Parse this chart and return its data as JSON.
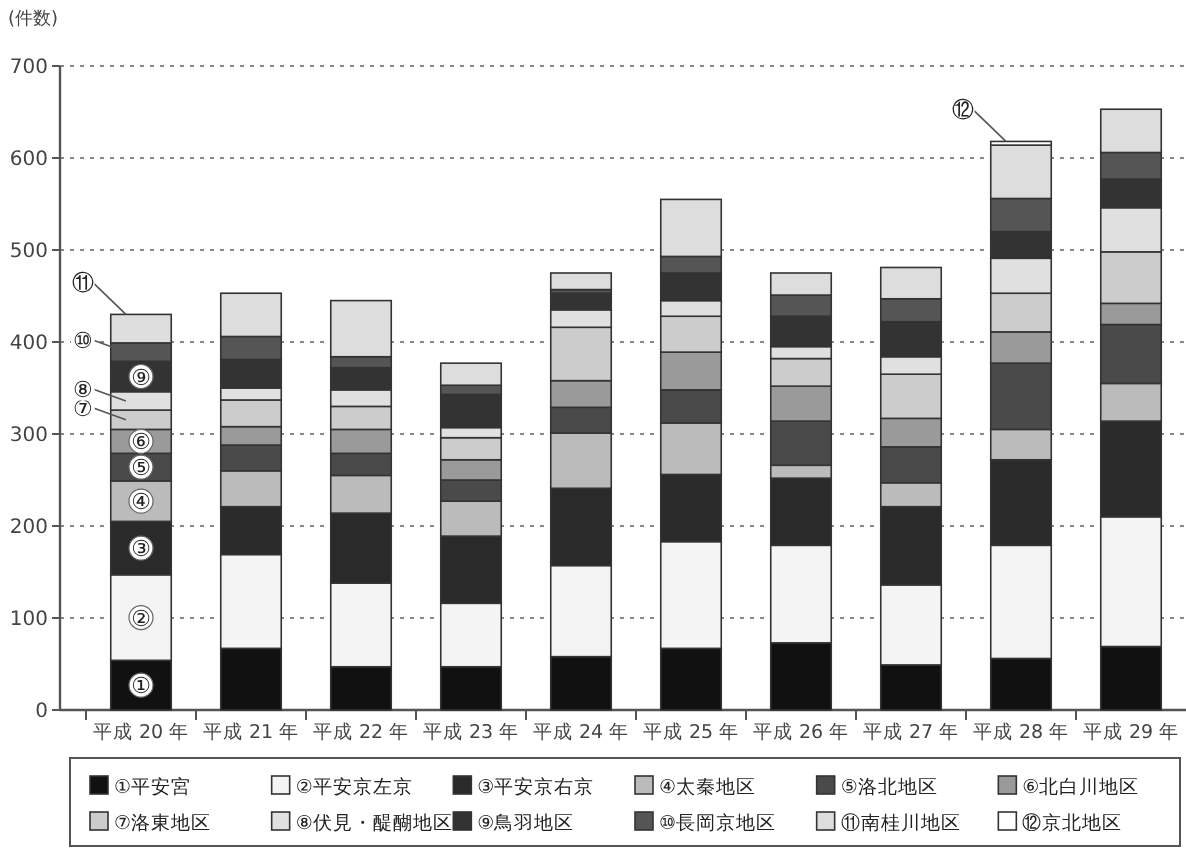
{
  "chart_data": {
    "type": "bar",
    "stacked": true,
    "ylabel": "(件数)",
    "categories": [
      "平成 20 年",
      "平成 21 年",
      "平成 22 年",
      "平成 23 年",
      "平成 24 年",
      "平成 25 年",
      "平成 26 年",
      "平成 27 年",
      "平成 28 年",
      "平成 29 年"
    ],
    "series": [
      {
        "name": "①平安宮",
        "color": "#111111",
        "values": [
          54,
          67,
          47,
          47,
          58,
          67,
          73,
          49,
          56,
          69
        ]
      },
      {
        "name": "②平安京左京",
        "color": "#f4f4f4",
        "values": [
          93,
          102,
          91,
          69,
          99,
          116,
          106,
          87,
          123,
          141
        ]
      },
      {
        "name": "③平安京右京",
        "color": "#2a2a2a",
        "values": [
          58,
          52,
          76,
          73,
          84,
          73,
          73,
          85,
          93,
          104
        ]
      },
      {
        "name": "④太秦地区",
        "color": "#bbbbbb",
        "values": [
          44,
          39,
          41,
          38,
          60,
          56,
          14,
          26,
          33,
          41
        ]
      },
      {
        "name": "⑤洛北地区",
        "color": "#4a4a4a",
        "values": [
          30,
          28,
          24,
          23,
          28,
          36,
          48,
          39,
          72,
          64
        ]
      },
      {
        "name": "⑥北白川地区",
        "color": "#9a9a9a",
        "values": [
          26,
          20,
          26,
          22,
          29,
          41,
          38,
          31,
          34,
          23
        ]
      },
      {
        "name": "⑦洛東地区",
        "color": "#cccccc",
        "values": [
          21,
          29,
          25,
          24,
          58,
          39,
          30,
          48,
          42,
          56
        ]
      },
      {
        "name": "⑧伏見・醍醐地区",
        "color": "#e0e0e0",
        "values": [
          20,
          13,
          18,
          11,
          19,
          17,
          13,
          19,
          38,
          48
        ]
      },
      {
        "name": "⑨鳥羽地区",
        "color": "#333333",
        "values": [
          33,
          31,
          24,
          36,
          18,
          30,
          33,
          38,
          29,
          31
        ]
      },
      {
        "name": "⑩長岡京地区",
        "color": "#555555",
        "values": [
          20,
          25,
          12,
          10,
          4,
          18,
          23,
          25,
          36,
          29
        ]
      },
      {
        "name": "⑪南桂川地区",
        "color": "#dddddd",
        "values": [
          31,
          47,
          61,
          24,
          18,
          62,
          24,
          34,
          58,
          47
        ]
      },
      {
        "name": "⑫京北地区",
        "color": "#ffffff",
        "values": [
          0,
          0,
          0,
          0,
          0,
          0,
          0,
          0,
          4,
          0
        ]
      }
    ],
    "ylim": [
      0,
      700
    ],
    "yticks": [
      0,
      100,
      200,
      300,
      400,
      500,
      600,
      700
    ],
    "grid": "y",
    "legend": "bottom",
    "annotations": [
      "①",
      "②",
      "③",
      "④",
      "⑤",
      "⑥",
      "⑦",
      "⑧",
      "⑨",
      "⑩",
      "⑪",
      "⑫"
    ]
  }
}
